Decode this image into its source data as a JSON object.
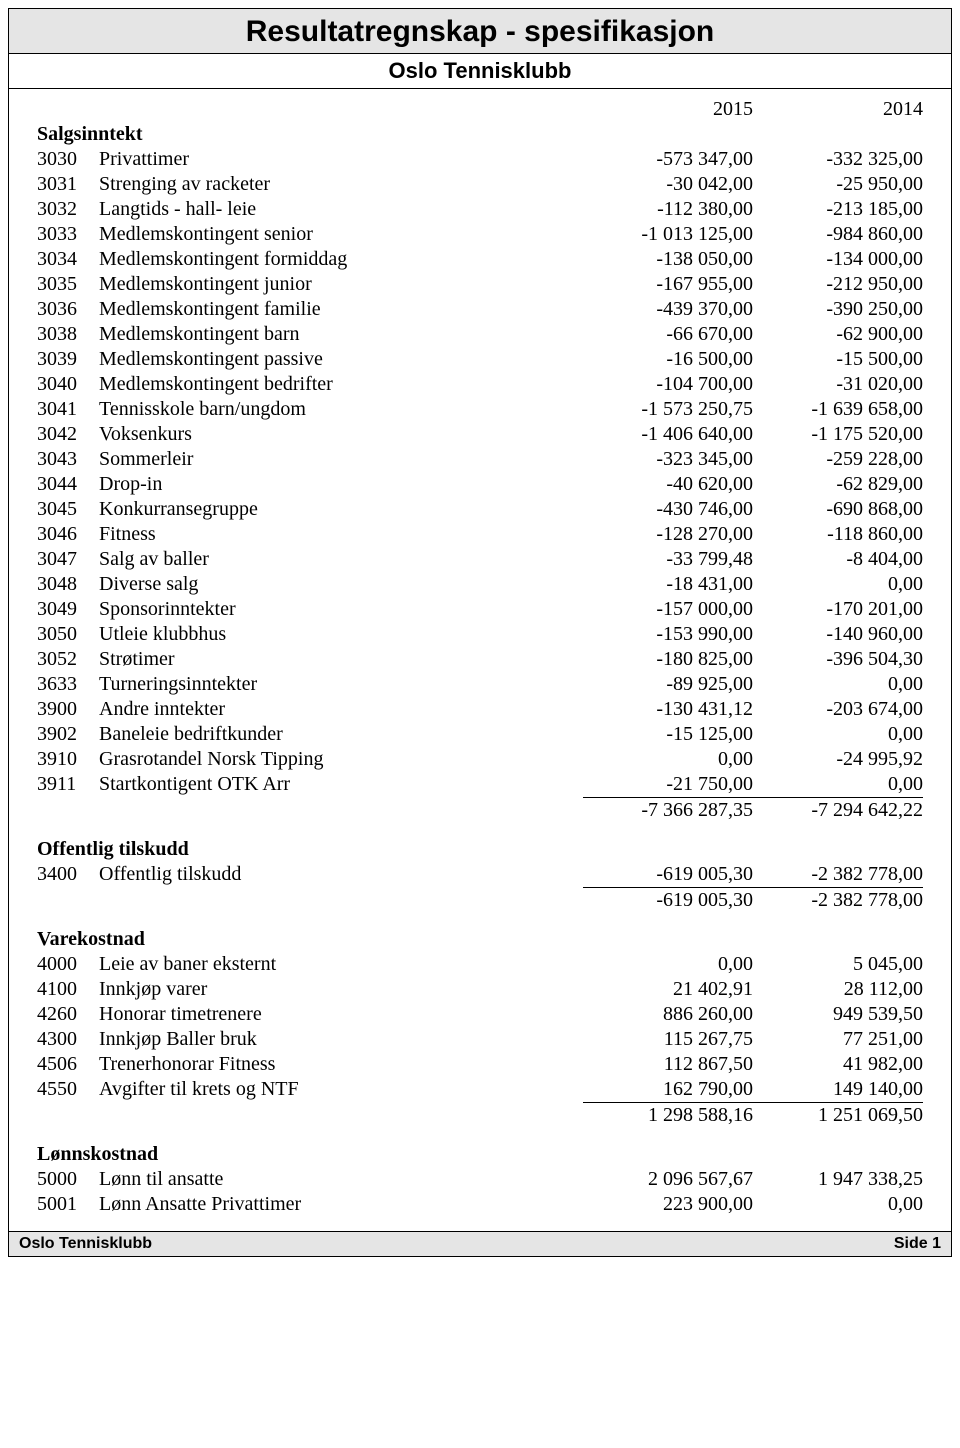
{
  "header": {
    "title": "Resultatregnskap - spesifikasjon",
    "subtitle": "Oslo Tennisklubb",
    "year1": "2015",
    "year2": "2014"
  },
  "footer": {
    "left": "Oslo Tennisklubb",
    "right": "Side 1"
  },
  "sections": [
    {
      "title": "Salgsinntekt",
      "rows": [
        {
          "code": "3030",
          "desc": "Privattimer",
          "y1": "-573 347,00",
          "y2": "-332 325,00"
        },
        {
          "code": "3031",
          "desc": "Strenging av racketer",
          "y1": "-30 042,00",
          "y2": "-25 950,00"
        },
        {
          "code": "3032",
          "desc": "Langtids - hall- leie",
          "y1": "-112 380,00",
          "y2": "-213 185,00"
        },
        {
          "code": "3033",
          "desc": "Medlemskontingent senior",
          "y1": "-1 013 125,00",
          "y2": "-984 860,00"
        },
        {
          "code": "3034",
          "desc": "Medlemskontingent formiddag",
          "y1": "-138 050,00",
          "y2": "-134 000,00"
        },
        {
          "code": "3035",
          "desc": "Medlemskontingent junior",
          "y1": "-167 955,00",
          "y2": "-212 950,00"
        },
        {
          "code": "3036",
          "desc": "Medlemskontingent familie",
          "y1": "-439 370,00",
          "y2": "-390 250,00"
        },
        {
          "code": "3038",
          "desc": "Medlemskontingent barn",
          "y1": "-66 670,00",
          "y2": "-62 900,00"
        },
        {
          "code": "3039",
          "desc": "Medlemskontingent passive",
          "y1": "-16 500,00",
          "y2": "-15 500,00"
        },
        {
          "code": "3040",
          "desc": "Medlemskontingent bedrifter",
          "y1": "-104 700,00",
          "y2": "-31 020,00"
        },
        {
          "code": "3041",
          "desc": "Tennisskole barn/ungdom",
          "y1": "-1 573 250,75",
          "y2": "-1 639 658,00"
        },
        {
          "code": "3042",
          "desc": "Voksenkurs",
          "y1": "-1 406 640,00",
          "y2": "-1 175 520,00"
        },
        {
          "code": "3043",
          "desc": "Sommerleir",
          "y1": "-323 345,00",
          "y2": "-259 228,00"
        },
        {
          "code": "3044",
          "desc": "Drop-in",
          "y1": "-40 620,00",
          "y2": "-62 829,00"
        },
        {
          "code": "3045",
          "desc": "Konkurransegruppe",
          "y1": "-430 746,00",
          "y2": "-690 868,00"
        },
        {
          "code": "3046",
          "desc": "Fitness",
          "y1": "-128 270,00",
          "y2": "-118 860,00"
        },
        {
          "code": "3047",
          "desc": "Salg av baller",
          "y1": "-33 799,48",
          "y2": "-8 404,00"
        },
        {
          "code": "3048",
          "desc": "Diverse salg",
          "y1": "-18 431,00",
          "y2": "0,00"
        },
        {
          "code": "3049",
          "desc": "Sponsorinntekter",
          "y1": "-157 000,00",
          "y2": "-170 201,00"
        },
        {
          "code": "3050",
          "desc": "Utleie klubbhus",
          "y1": "-153 990,00",
          "y2": "-140 960,00"
        },
        {
          "code": "3052",
          "desc": "Strøtimer",
          "y1": "-180 825,00",
          "y2": "-396 504,30"
        },
        {
          "code": "3633",
          "desc": "Turneringsinntekter",
          "y1": "-89 925,00",
          "y2": "0,00"
        },
        {
          "code": "3900",
          "desc": "Andre inntekter",
          "y1": "-130 431,12",
          "y2": "-203 674,00"
        },
        {
          "code": "3902",
          "desc": "Baneleie bedriftkunder",
          "y1": "-15 125,00",
          "y2": "0,00"
        },
        {
          "code": "3910",
          "desc": "Grasrotandel Norsk Tipping",
          "y1": "0,00",
          "y2": "-24 995,92"
        },
        {
          "code": "3911",
          "desc": "Startkontigent OTK Arr",
          "y1": "-21 750,00",
          "y2": "0,00"
        }
      ],
      "subtotal": {
        "y1": "-7 366 287,35",
        "y2": "-7 294 642,22"
      }
    },
    {
      "title": "Offentlig tilskudd",
      "rows": [
        {
          "code": "3400",
          "desc": "Offentlig tilskudd",
          "y1": "-619 005,30",
          "y2": "-2 382 778,00"
        }
      ],
      "subtotal": {
        "y1": "-619 005,30",
        "y2": "-2 382 778,00"
      }
    },
    {
      "title": "Varekostnad",
      "rows": [
        {
          "code": "4000",
          "desc": "Leie av baner eksternt",
          "y1": "0,00",
          "y2": "5 045,00"
        },
        {
          "code": "4100",
          "desc": "Innkjøp varer",
          "y1": "21 402,91",
          "y2": "28 112,00"
        },
        {
          "code": "4260",
          "desc": "Honorar timetrenere",
          "y1": "886 260,00",
          "y2": "949 539,50"
        },
        {
          "code": "4300",
          "desc": "Innkjøp Baller bruk",
          "y1": "115 267,75",
          "y2": "77 251,00"
        },
        {
          "code": "4506",
          "desc": "Trenerhonorar Fitness",
          "y1": "112 867,50",
          "y2": "41 982,00"
        },
        {
          "code": "4550",
          "desc": "Avgifter til krets og NTF",
          "y1": "162 790,00",
          "y2": "149 140,00"
        }
      ],
      "subtotal": {
        "y1": "1 298 588,16",
        "y2": "1 251 069,50"
      }
    },
    {
      "title": "Lønnskostnad",
      "rows": [
        {
          "code": "5000",
          "desc": "Lønn til ansatte",
          "y1": "2 096 567,67",
          "y2": "1 947 338,25"
        },
        {
          "code": "5001",
          "desc": "Lønn Ansatte Privattimer",
          "y1": "223 900,00",
          "y2": "0,00"
        }
      ],
      "subtotal": null
    }
  ]
}
